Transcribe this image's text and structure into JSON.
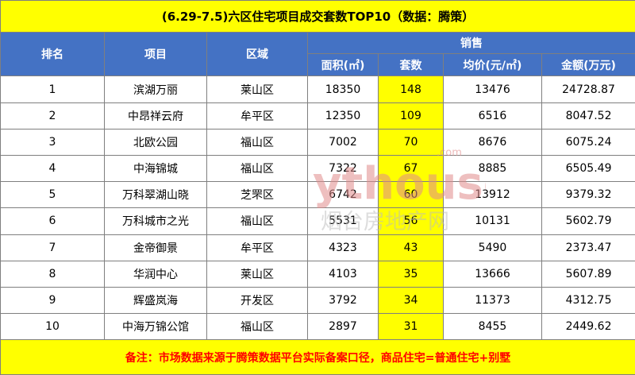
{
  "title": "(6.29-7.5)六区住宅项目成交套数TOP10（数据：腾策）",
  "headers": {
    "rank": "排名",
    "project": "项目",
    "district": "区域",
    "sales_group": "销售",
    "area": "面积(㎡)",
    "units": "套数",
    "avg_price": "均价(元/㎡)",
    "amount": "金额(万元)"
  },
  "rows": [
    {
      "rank": "1",
      "project": "滨湖万丽",
      "district": "莱山区",
      "area": "18350",
      "units": "148",
      "avg_price": "13476",
      "amount": "24728.87"
    },
    {
      "rank": "2",
      "project": "中昂祥云府",
      "district": "牟平区",
      "area": "12350",
      "units": "109",
      "avg_price": "6516",
      "amount": "8047.52"
    },
    {
      "rank": "3",
      "project": "北欧公园",
      "district": "福山区",
      "area": "7002",
      "units": "70",
      "avg_price": "8676",
      "amount": "6075.24"
    },
    {
      "rank": "4",
      "project": "中海锦城",
      "district": "福山区",
      "area": "7322",
      "units": "67",
      "avg_price": "8885",
      "amount": "6505.49"
    },
    {
      "rank": "5",
      "project": "万科翠湖山晓",
      "district": "芝罘区",
      "area": "6742",
      "units": "60",
      "avg_price": "13912",
      "amount": "9379.32"
    },
    {
      "rank": "6",
      "project": "万科城市之光",
      "district": "福山区",
      "area": "5531",
      "units": "56",
      "avg_price": "10131",
      "amount": "5602.79"
    },
    {
      "rank": "7",
      "project": "金帝御景",
      "district": "牟平区",
      "area": "4323",
      "units": "43",
      "avg_price": "5490",
      "amount": "2373.47"
    },
    {
      "rank": "8",
      "project": "华润中心",
      "district": "莱山区",
      "area": "4103",
      "units": "35",
      "avg_price": "13666",
      "amount": "5607.89"
    },
    {
      "rank": "9",
      "project": "辉盛岚海",
      "district": "开发区",
      "area": "3792",
      "units": "34",
      "avg_price": "11373",
      "amount": "4312.75"
    },
    {
      "rank": "10",
      "project": "中海万锦公馆",
      "district": "福山区",
      "area": "2897",
      "units": "31",
      "avg_price": "8455",
      "amount": "2449.62"
    }
  ],
  "note": "备注：市场数据来源于腾策数据平台实际备案口径，商品住宅=普通住宅+别墅",
  "watermark": {
    "brand": "ythouse",
    "domain": ".com",
    "cn": "烟台房地产网"
  },
  "colors": {
    "title_bg": "#ffff00",
    "header_bg": "#4472c4",
    "highlight": "#ffff00",
    "note_text": "#ff0000",
    "watermark": "#e08a8a"
  }
}
